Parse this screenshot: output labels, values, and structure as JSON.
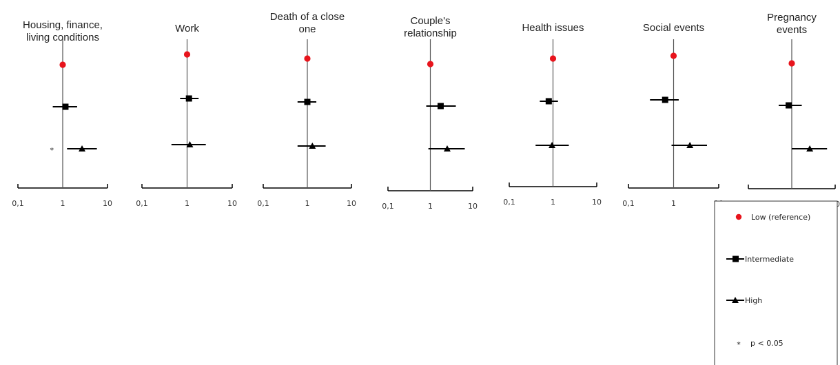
{
  "chart_data": {
    "type": "forest",
    "x_scale": "log",
    "xlim": [
      0.1,
      10
    ],
    "tick_labels": [
      "0,1",
      "1",
      "10"
    ],
    "reference_value": 1,
    "grid": false,
    "legend_position": "bottom-right",
    "colors": {
      "low": "#e8141c",
      "intermediate": "#000000",
      "high": "#000000",
      "axis": "#000000"
    },
    "legend": {
      "low": "Low (reference)",
      "intermediate": "Intermediate",
      "high": "High",
      "significance_symbol": "*",
      "significance": "p < 0.05"
    },
    "panels": [
      {
        "title": [
          "Housing, finance,",
          "living conditions"
        ],
        "series": [
          {
            "level": "low",
            "estimate": 1
          },
          {
            "level": "intermediate",
            "estimate": 1.15,
            "lower": 0.6,
            "upper": 2.1
          },
          {
            "level": "high",
            "estimate": 2.7,
            "lower": 1.25,
            "upper": 5.8,
            "significant": true
          }
        ]
      },
      {
        "title": [
          "Work"
        ],
        "series": [
          {
            "level": "low",
            "estimate": 1
          },
          {
            "level": "intermediate",
            "estimate": 1.1,
            "lower": 0.7,
            "upper": 1.8
          },
          {
            "level": "high",
            "estimate": 1.15,
            "lower": 0.45,
            "upper": 2.6
          }
        ]
      },
      {
        "title": [
          "Death of a close",
          "one"
        ],
        "series": [
          {
            "level": "low",
            "estimate": 1
          },
          {
            "level": "intermediate",
            "estimate": 1.0,
            "lower": 0.6,
            "upper": 1.6
          },
          {
            "level": "high",
            "estimate": 1.3,
            "lower": 0.6,
            "upper": 2.6
          }
        ]
      },
      {
        "title": [
          "Couple's",
          "relationship"
        ],
        "series": [
          {
            "level": "low",
            "estimate": 1
          },
          {
            "level": "intermediate",
            "estimate": 1.75,
            "lower": 0.8,
            "upper": 4.0
          },
          {
            "level": "high",
            "estimate": 2.5,
            "lower": 0.9,
            "upper": 6.5
          }
        ]
      },
      {
        "title": [
          "Health issues"
        ],
        "series": [
          {
            "level": "low",
            "estimate": 1
          },
          {
            "level": "intermediate",
            "estimate": 0.8,
            "lower": 0.5,
            "upper": 1.3
          },
          {
            "level": "high",
            "estimate": 0.95,
            "lower": 0.4,
            "upper": 2.3
          }
        ]
      },
      {
        "title": [
          "Social events"
        ],
        "series": [
          {
            "level": "low",
            "estimate": 1
          },
          {
            "level": "intermediate",
            "estimate": 0.65,
            "lower": 0.3,
            "upper": 1.3
          },
          {
            "level": "high",
            "estimate": 2.3,
            "lower": 0.9,
            "upper": 5.5
          }
        ]
      },
      {
        "title": [
          "Pregnancy",
          "events"
        ],
        "series": [
          {
            "level": "low",
            "estimate": 1
          },
          {
            "level": "intermediate",
            "estimate": 0.85,
            "lower": 0.5,
            "upper": 1.7
          },
          {
            "level": "high",
            "estimate": 2.6,
            "lower": 1.0,
            "upper": 6.5
          }
        ]
      }
    ]
  }
}
